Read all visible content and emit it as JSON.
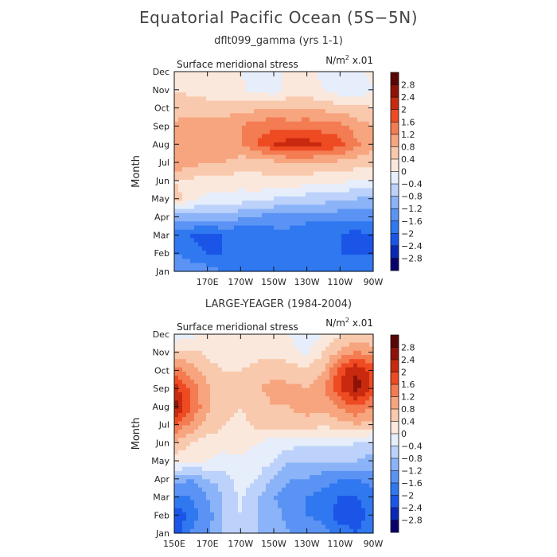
{
  "page": {
    "title": "Equatorial Pacific Ocean (5S−5N)"
  },
  "chart_data": [
    {
      "type": "heatmap",
      "title": "dflt099_gamma (yrs 1-1)",
      "panel_label": "Surface meridional stress",
      "units_label": "N/m² x.01",
      "xlabel": "",
      "ylabel": "Month",
      "xlim": [
        150,
        270
      ],
      "x_units": "longitude (degrees east)",
      "x_tick_values": [
        170,
        190,
        210,
        230,
        250,
        270
      ],
      "x_tick_labels": [
        "170E",
        "170W",
        "150W",
        "130W",
        "110W",
        "90W"
      ],
      "y_tick_labels": [
        "Jan",
        "Feb",
        "Mar",
        "Apr",
        "May",
        "Jun",
        "Jul",
        "Aug",
        "Sep",
        "Oct",
        "Nov",
        "Dec"
      ],
      "x": [
        150,
        160,
        170,
        180,
        190,
        200,
        210,
        220,
        230,
        240,
        250,
        260,
        270
      ],
      "y": [
        "Jan",
        "Feb",
        "Mar",
        "Apr",
        "May",
        "Jun",
        "Jul",
        "Aug",
        "Sep",
        "Oct",
        "Nov",
        "Dec"
      ],
      "z": [
        [
          -1.2,
          -1.4,
          -1.4,
          -1.6,
          -1.8,
          -1.8,
          -1.8,
          -2.0,
          -1.8,
          -1.8,
          -1.8,
          -1.8,
          -1.8
        ],
        [
          -1.6,
          -1.8,
          -2.0,
          -2.0,
          -2.0,
          -2.0,
          -2.0,
          -2.0,
          -2.0,
          -2.0,
          -2.0,
          -2.0,
          -2.0
        ],
        [
          -1.8,
          -2.0,
          -2.2,
          -2.0,
          -2.0,
          -2.0,
          -1.8,
          -1.8,
          -2.0,
          -2.0,
          -2.0,
          -2.2,
          -2.0
        ],
        [
          -1.0,
          -1.0,
          -0.9,
          -0.9,
          -1.1,
          -1.3,
          -1.3,
          -1.3,
          -1.4,
          -1.4,
          -1.4,
          -1.4,
          -1.4
        ],
        [
          0.6,
          0.1,
          -0.1,
          -0.1,
          -0.2,
          -0.2,
          -0.4,
          -0.5,
          -0.6,
          -0.6,
          -0.8,
          -0.8,
          -0.9
        ],
        [
          0.4,
          0.3,
          0.3,
          0.3,
          0.2,
          0.3,
          0.3,
          0.3,
          0.2,
          0.1,
          0.1,
          0.0,
          -0.1
        ],
        [
          1.2,
          1.0,
          0.8,
          0.8,
          0.6,
          0.5,
          0.7,
          0.8,
          0.8,
          0.8,
          0.7,
          0.6,
          0.5
        ],
        [
          1.0,
          1.0,
          1.0,
          1.2,
          1.2,
          1.6,
          2.0,
          2.2,
          2.2,
          2.0,
          1.8,
          1.3,
          0.9
        ],
        [
          0.9,
          1.0,
          1.0,
          1.0,
          1.2,
          1.4,
          1.5,
          1.4,
          1.5,
          1.4,
          1.3,
          1.0,
          0.8
        ],
        [
          0.6,
          0.6,
          0.6,
          0.6,
          0.6,
          0.7,
          0.8,
          0.8,
          0.7,
          0.7,
          0.6,
          0.5,
          0.4
        ],
        [
          0.4,
          0.3,
          0.2,
          0.1,
          0.1,
          -0.2,
          -0.3,
          0.2,
          0.2,
          0.0,
          -0.3,
          -0.3,
          0.0
        ],
        [
          0.2,
          0.2,
          0.2,
          0.0,
          0.0,
          -0.2,
          -0.2,
          0.2,
          0.2,
          -0.1,
          -0.3,
          -0.1,
          0.1
        ]
      ],
      "colorbar_levels": [
        -2.8,
        -2.4,
        -2,
        -1.6,
        -1.2,
        -0.8,
        -0.4,
        0,
        0.4,
        0.8,
        1.2,
        1.6,
        2,
        2.4,
        2.8
      ],
      "colorbar_labels": [
        "2.8",
        "2.4",
        "2",
        "1.6",
        "1.2",
        "0.8",
        "0.4",
        "0",
        "−0.4",
        "−0.8",
        "−1.2",
        "−1.6",
        "−2",
        "−2.4",
        "−2.8"
      ]
    },
    {
      "type": "heatmap",
      "title": "LARGE-YEAGER (1984-2004)",
      "panel_label": "Surface meridional stress",
      "units_label": "N/m² x.01",
      "xlabel": "",
      "ylabel": "Month",
      "xlim": [
        150,
        270
      ],
      "x_units": "longitude (degrees east)",
      "x_tick_values": [
        150,
        170,
        190,
        210,
        230,
        250,
        270
      ],
      "x_tick_labels": [
        "150E",
        "170E",
        "170W",
        "150W",
        "130W",
        "110W",
        "90W"
      ],
      "y_tick_labels": [
        "Jan",
        "Feb",
        "Mar",
        "Apr",
        "May",
        "Jun",
        "Jul",
        "Aug",
        "Sep",
        "Oct",
        "Nov",
        "Dec"
      ],
      "x": [
        150,
        160,
        170,
        180,
        190,
        200,
        210,
        220,
        230,
        240,
        250,
        260,
        270
      ],
      "y": [
        "Jan",
        "Feb",
        "Mar",
        "Apr",
        "May",
        "Jun",
        "Jul",
        "Aug",
        "Sep",
        "Oct",
        "Nov",
        "Dec"
      ],
      "z": [
        [
          -2.2,
          -1.6,
          -1.2,
          -0.8,
          -0.4,
          -0.8,
          -0.8,
          -1.2,
          -1.2,
          -1.4,
          -1.8,
          -2.0,
          -1.6
        ],
        [
          -2.4,
          -1.8,
          -1.4,
          -0.8,
          -0.4,
          -0.8,
          -1.0,
          -1.4,
          -1.6,
          -1.8,
          -2.2,
          -2.2,
          -1.8
        ],
        [
          -1.6,
          -1.6,
          -1.2,
          -0.8,
          -0.3,
          -0.8,
          -1.2,
          -1.6,
          -1.6,
          -1.8,
          -2.0,
          -2.0,
          -1.8
        ],
        [
          -1.0,
          -1.2,
          -0.8,
          -0.6,
          -0.2,
          -0.4,
          -0.8,
          -1.2,
          -1.2,
          -1.4,
          -1.6,
          -1.6,
          -1.4
        ],
        [
          0.2,
          0.1,
          0.0,
          -0.2,
          -0.1,
          -0.2,
          -0.4,
          -0.8,
          -0.8,
          -0.8,
          -0.8,
          -0.8,
          -1.0
        ],
        [
          0.8,
          0.4,
          0.2,
          0.2,
          0.2,
          0.0,
          -0.2,
          -0.2,
          -0.3,
          -0.3,
          -0.3,
          -0.4,
          -0.4
        ],
        [
          1.6,
          1.1,
          0.7,
          0.4,
          0.3,
          0.5,
          0.7,
          0.6,
          0.6,
          0.5,
          0.6,
          0.8,
          0.6
        ],
        [
          2.6,
          1.6,
          0.9,
          0.5,
          0.4,
          0.6,
          0.8,
          0.8,
          1.0,
          0.9,
          1.3,
          1.6,
          1.2
        ],
        [
          2.2,
          1.5,
          0.9,
          0.5,
          0.5,
          0.8,
          0.9,
          0.9,
          0.8,
          1.1,
          2.0,
          2.6,
          1.9
        ],
        [
          1.4,
          1.0,
          0.6,
          0.4,
          0.4,
          0.6,
          0.7,
          0.6,
          0.5,
          0.8,
          1.8,
          2.4,
          1.8
        ],
        [
          0.6,
          0.5,
          0.3,
          0.1,
          0.1,
          0.2,
          0.3,
          0.1,
          -0.1,
          0.4,
          0.9,
          1.2,
          1.0
        ],
        [
          -0.4,
          -0.1,
          0.1,
          0.2,
          0.2,
          0.1,
          0.2,
          0.0,
          -0.2,
          0.0,
          0.3,
          0.5,
          0.4
        ]
      ],
      "colorbar_levels": [
        -2.8,
        -2.4,
        -2,
        -1.6,
        -1.2,
        -0.8,
        -0.4,
        0,
        0.4,
        0.8,
        1.2,
        1.6,
        2,
        2.4,
        2.8
      ],
      "colorbar_labels": [
        "2.8",
        "2.4",
        "2",
        "1.6",
        "1.2",
        "0.8",
        "0.4",
        "0",
        "−0.4",
        "−0.8",
        "−1.2",
        "−1.6",
        "−2",
        "−2.4",
        "−2.8"
      ]
    }
  ],
  "colors": {
    "scale": [
      "#08006b",
      "#0a28b8",
      "#1a55e8",
      "#2f78f0",
      "#5b93f5",
      "#8bb3f8",
      "#bcd2fa",
      "#e6eefc",
      "#fbe8dc",
      "#f9c9ad",
      "#f7a57f",
      "#f47c52",
      "#ef4b23",
      "#c92a0f",
      "#8f1208",
      "#5a0604"
    ],
    "background": "#ffffff",
    "axis": "#111111"
  }
}
